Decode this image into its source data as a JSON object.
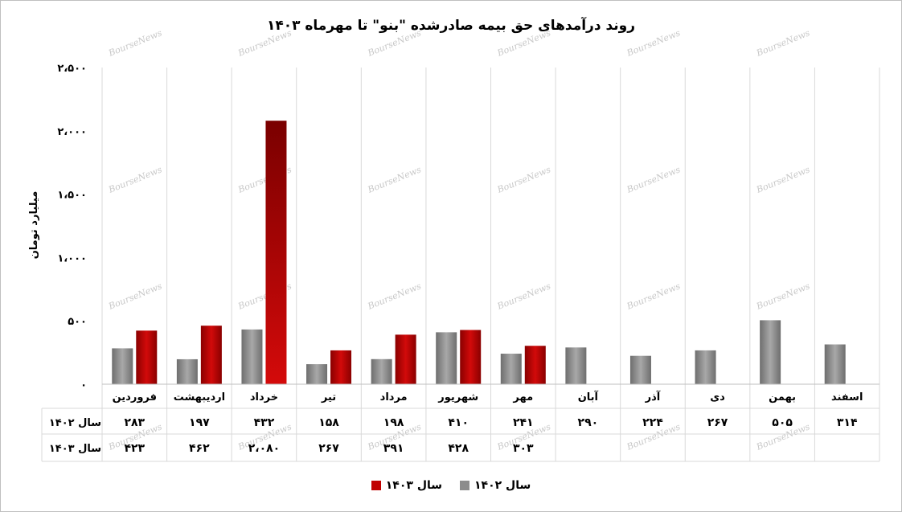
{
  "chart_data": {
    "type": "bar",
    "title": "روند درآمدهای حق بیمه صادرشده \"بنو\" تا مهرماه ۱۴۰۳",
    "ylabel": "میلیارد تومان",
    "xlabel": "",
    "ylim": [
      0,
      2500
    ],
    "yticks": [
      "۰",
      "۵۰۰",
      "۱،۰۰۰",
      "۱،۵۰۰",
      "۲،۰۰۰",
      "۲،۵۰۰"
    ],
    "ytick_values": [
      0,
      500,
      1000,
      1500,
      2000,
      2500
    ],
    "grid": true,
    "legend_position": "bottom",
    "categories": [
      "فروردین",
      "اردیبهشت",
      "خرداد",
      "تیر",
      "مرداد",
      "شهریور",
      "مهر",
      "آبان",
      "آذر",
      "دی",
      "بهمن",
      "اسفند"
    ],
    "series": [
      {
        "name": "سال ۱۴۰۲",
        "color": "#8c8c8c",
        "values": [
          283,
          197,
          432,
          158,
          198,
          410,
          241,
          290,
          224,
          267,
          505,
          314
        ],
        "labels": [
          "۲۸۳",
          "۱۹۷",
          "۴۳۲",
          "۱۵۸",
          "۱۹۸",
          "۴۱۰",
          "۲۴۱",
          "۲۹۰",
          "۲۲۴",
          "۲۶۷",
          "۵۰۵",
          "۳۱۴"
        ]
      },
      {
        "name": "سال ۱۴۰۳",
        "color": "#c00000",
        "values": [
          423,
          462,
          2080,
          267,
          391,
          428,
          303,
          null,
          null,
          null,
          null,
          null
        ],
        "labels": [
          "۴۲۳",
          "۴۶۲",
          "۲،۰۸۰",
          "۲۶۷",
          "۳۹۱",
          "۴۲۸",
          "۳۰۳",
          "",
          "",
          "",
          "",
          ""
        ]
      }
    ],
    "watermark": "BourseNews"
  }
}
